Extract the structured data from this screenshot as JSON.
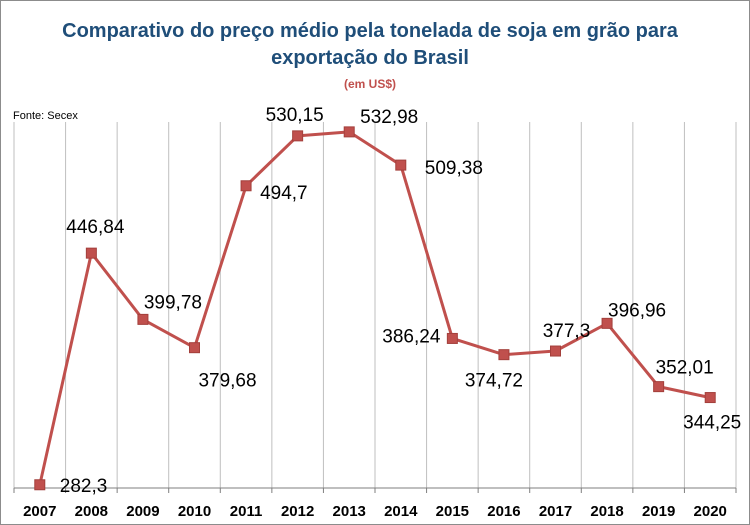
{
  "chart_data": {
    "type": "line",
    "title_line1": "Comparativo do preço médio pela tonelada de soja em grão para",
    "title_line2": "exportação do Brasil",
    "subtitle": "(em US$)",
    "source": "Fonte: Secex",
    "xlabel": "",
    "ylabel": "",
    "ylim": [
      280,
      540
    ],
    "grid": "vertical",
    "categories": [
      "2007",
      "2008",
      "2009",
      "2010",
      "2011",
      "2012",
      "2013",
      "2014",
      "2015",
      "2016",
      "2017",
      "2018",
      "2019",
      "2020"
    ],
    "series": [
      {
        "name": "Preço médio (US$/t)",
        "color": "#c0504d",
        "values": [
          282.3,
          446.84,
          399.78,
          379.68,
          494.7,
          530.15,
          532.98,
          509.38,
          386.24,
          374.72,
          377.3,
          396.96,
          352.01,
          344.25
        ],
        "labels": [
          "282,3",
          "446,84",
          "399,78",
          "379,68",
          "494,7",
          "530,15",
          "532,98",
          "509,38",
          "386,24",
          "374,72",
          "377,3",
          "396,96",
          "352,01",
          "344,25"
        ]
      }
    ]
  }
}
